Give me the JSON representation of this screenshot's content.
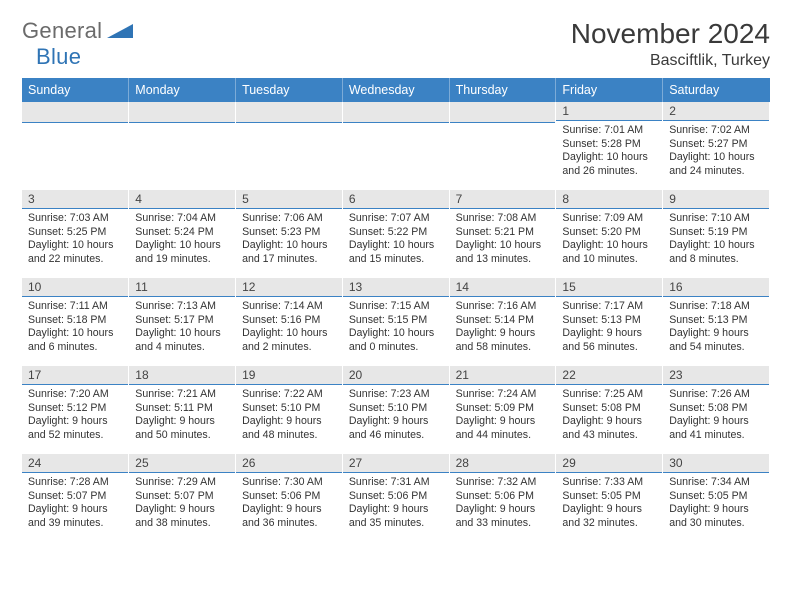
{
  "logo": {
    "text_dark": "General",
    "text_blue": "Blue"
  },
  "title": "November 2024",
  "location": "Basciftlik, Turkey",
  "colors": {
    "header_bg": "#3b82c4",
    "header_text": "#ffffff",
    "daynum_bg": "#e7e7e7",
    "daynum_border": "#3b82c4",
    "text": "#333333",
    "logo_dark": "#6b6b6b",
    "logo_blue": "#2f74b5"
  },
  "typography": {
    "title_fontsize": 28,
    "location_fontsize": 16,
    "header_fontsize": 12.5,
    "daynum_fontsize": 12,
    "body_fontsize": 10.6
  },
  "day_headers": [
    "Sunday",
    "Monday",
    "Tuesday",
    "Wednesday",
    "Thursday",
    "Friday",
    "Saturday"
  ],
  "weeks": [
    [
      null,
      null,
      null,
      null,
      null,
      {
        "n": "1",
        "sunrise": "Sunrise: 7:01 AM",
        "sunset": "Sunset: 5:28 PM",
        "daylight": "Daylight: 10 hours and 26 minutes."
      },
      {
        "n": "2",
        "sunrise": "Sunrise: 7:02 AM",
        "sunset": "Sunset: 5:27 PM",
        "daylight": "Daylight: 10 hours and 24 minutes."
      }
    ],
    [
      {
        "n": "3",
        "sunrise": "Sunrise: 7:03 AM",
        "sunset": "Sunset: 5:25 PM",
        "daylight": "Daylight: 10 hours and 22 minutes."
      },
      {
        "n": "4",
        "sunrise": "Sunrise: 7:04 AM",
        "sunset": "Sunset: 5:24 PM",
        "daylight": "Daylight: 10 hours and 19 minutes."
      },
      {
        "n": "5",
        "sunrise": "Sunrise: 7:06 AM",
        "sunset": "Sunset: 5:23 PM",
        "daylight": "Daylight: 10 hours and 17 minutes."
      },
      {
        "n": "6",
        "sunrise": "Sunrise: 7:07 AM",
        "sunset": "Sunset: 5:22 PM",
        "daylight": "Daylight: 10 hours and 15 minutes."
      },
      {
        "n": "7",
        "sunrise": "Sunrise: 7:08 AM",
        "sunset": "Sunset: 5:21 PM",
        "daylight": "Daylight: 10 hours and 13 minutes."
      },
      {
        "n": "8",
        "sunrise": "Sunrise: 7:09 AM",
        "sunset": "Sunset: 5:20 PM",
        "daylight": "Daylight: 10 hours and 10 minutes."
      },
      {
        "n": "9",
        "sunrise": "Sunrise: 7:10 AM",
        "sunset": "Sunset: 5:19 PM",
        "daylight": "Daylight: 10 hours and 8 minutes."
      }
    ],
    [
      {
        "n": "10",
        "sunrise": "Sunrise: 7:11 AM",
        "sunset": "Sunset: 5:18 PM",
        "daylight": "Daylight: 10 hours and 6 minutes."
      },
      {
        "n": "11",
        "sunrise": "Sunrise: 7:13 AM",
        "sunset": "Sunset: 5:17 PM",
        "daylight": "Daylight: 10 hours and 4 minutes."
      },
      {
        "n": "12",
        "sunrise": "Sunrise: 7:14 AM",
        "sunset": "Sunset: 5:16 PM",
        "daylight": "Daylight: 10 hours and 2 minutes."
      },
      {
        "n": "13",
        "sunrise": "Sunrise: 7:15 AM",
        "sunset": "Sunset: 5:15 PM",
        "daylight": "Daylight: 10 hours and 0 minutes."
      },
      {
        "n": "14",
        "sunrise": "Sunrise: 7:16 AM",
        "sunset": "Sunset: 5:14 PM",
        "daylight": "Daylight: 9 hours and 58 minutes."
      },
      {
        "n": "15",
        "sunrise": "Sunrise: 7:17 AM",
        "sunset": "Sunset: 5:13 PM",
        "daylight": "Daylight: 9 hours and 56 minutes."
      },
      {
        "n": "16",
        "sunrise": "Sunrise: 7:18 AM",
        "sunset": "Sunset: 5:13 PM",
        "daylight": "Daylight: 9 hours and 54 minutes."
      }
    ],
    [
      {
        "n": "17",
        "sunrise": "Sunrise: 7:20 AM",
        "sunset": "Sunset: 5:12 PM",
        "daylight": "Daylight: 9 hours and 52 minutes."
      },
      {
        "n": "18",
        "sunrise": "Sunrise: 7:21 AM",
        "sunset": "Sunset: 5:11 PM",
        "daylight": "Daylight: 9 hours and 50 minutes."
      },
      {
        "n": "19",
        "sunrise": "Sunrise: 7:22 AM",
        "sunset": "Sunset: 5:10 PM",
        "daylight": "Daylight: 9 hours and 48 minutes."
      },
      {
        "n": "20",
        "sunrise": "Sunrise: 7:23 AM",
        "sunset": "Sunset: 5:10 PM",
        "daylight": "Daylight: 9 hours and 46 minutes."
      },
      {
        "n": "21",
        "sunrise": "Sunrise: 7:24 AM",
        "sunset": "Sunset: 5:09 PM",
        "daylight": "Daylight: 9 hours and 44 minutes."
      },
      {
        "n": "22",
        "sunrise": "Sunrise: 7:25 AM",
        "sunset": "Sunset: 5:08 PM",
        "daylight": "Daylight: 9 hours and 43 minutes."
      },
      {
        "n": "23",
        "sunrise": "Sunrise: 7:26 AM",
        "sunset": "Sunset: 5:08 PM",
        "daylight": "Daylight: 9 hours and 41 minutes."
      }
    ],
    [
      {
        "n": "24",
        "sunrise": "Sunrise: 7:28 AM",
        "sunset": "Sunset: 5:07 PM",
        "daylight": "Daylight: 9 hours and 39 minutes."
      },
      {
        "n": "25",
        "sunrise": "Sunrise: 7:29 AM",
        "sunset": "Sunset: 5:07 PM",
        "daylight": "Daylight: 9 hours and 38 minutes."
      },
      {
        "n": "26",
        "sunrise": "Sunrise: 7:30 AM",
        "sunset": "Sunset: 5:06 PM",
        "daylight": "Daylight: 9 hours and 36 minutes."
      },
      {
        "n": "27",
        "sunrise": "Sunrise: 7:31 AM",
        "sunset": "Sunset: 5:06 PM",
        "daylight": "Daylight: 9 hours and 35 minutes."
      },
      {
        "n": "28",
        "sunrise": "Sunrise: 7:32 AM",
        "sunset": "Sunset: 5:06 PM",
        "daylight": "Daylight: 9 hours and 33 minutes."
      },
      {
        "n": "29",
        "sunrise": "Sunrise: 7:33 AM",
        "sunset": "Sunset: 5:05 PM",
        "daylight": "Daylight: 9 hours and 32 minutes."
      },
      {
        "n": "30",
        "sunrise": "Sunrise: 7:34 AM",
        "sunset": "Sunset: 5:05 PM",
        "daylight": "Daylight: 9 hours and 30 minutes."
      }
    ]
  ]
}
